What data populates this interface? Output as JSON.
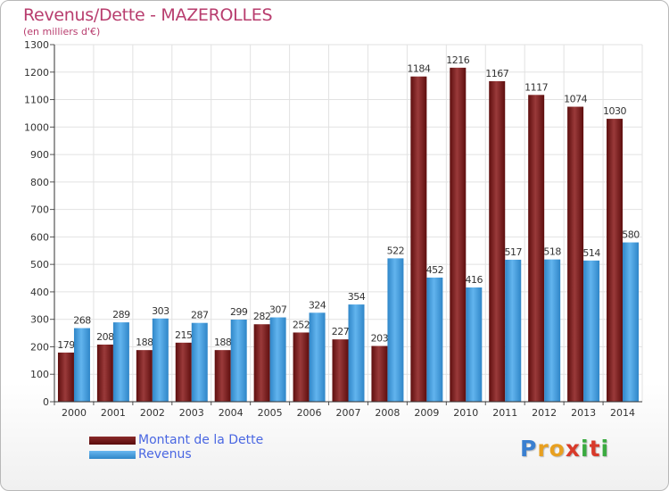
{
  "chart_data": {
    "type": "bar",
    "title": "Revenus/Dette - MAZEROLLES",
    "subtitle": "(en milliers d'€)",
    "categories": [
      "2000",
      "2001",
      "2002",
      "2003",
      "2004",
      "2005",
      "2006",
      "2007",
      "2008",
      "2009",
      "2010",
      "2011",
      "2012",
      "2013",
      "2014"
    ],
    "series": [
      {
        "name": "Montant de la Dette",
        "color": "#7a1515",
        "values": [
          179,
          208,
          188,
          215,
          188,
          282,
          252,
          227,
          203,
          1184,
          1216,
          1167,
          1117,
          1074,
          1030
        ]
      },
      {
        "name": "Revenus",
        "color": "#4aa3e0",
        "values": [
          268,
          289,
          303,
          287,
          299,
          307,
          324,
          354,
          522,
          452,
          416,
          517,
          518,
          514,
          580
        ]
      }
    ],
    "ylim": [
      0,
      1300
    ],
    "yticks": [
      0,
      100,
      200,
      300,
      400,
      500,
      600,
      700,
      800,
      900,
      1000,
      1100,
      1200,
      1300
    ],
    "grid": true,
    "legend_position": "bottom-left"
  },
  "logo": {
    "letters": [
      "P",
      "r",
      "o",
      "x",
      "i",
      "t",
      "i"
    ],
    "colors": [
      "#3a7fd0",
      "#e8a020",
      "#e8a020",
      "#d83a2a",
      "#3aaa40",
      "#d83a2a",
      "#3aaa40"
    ]
  }
}
